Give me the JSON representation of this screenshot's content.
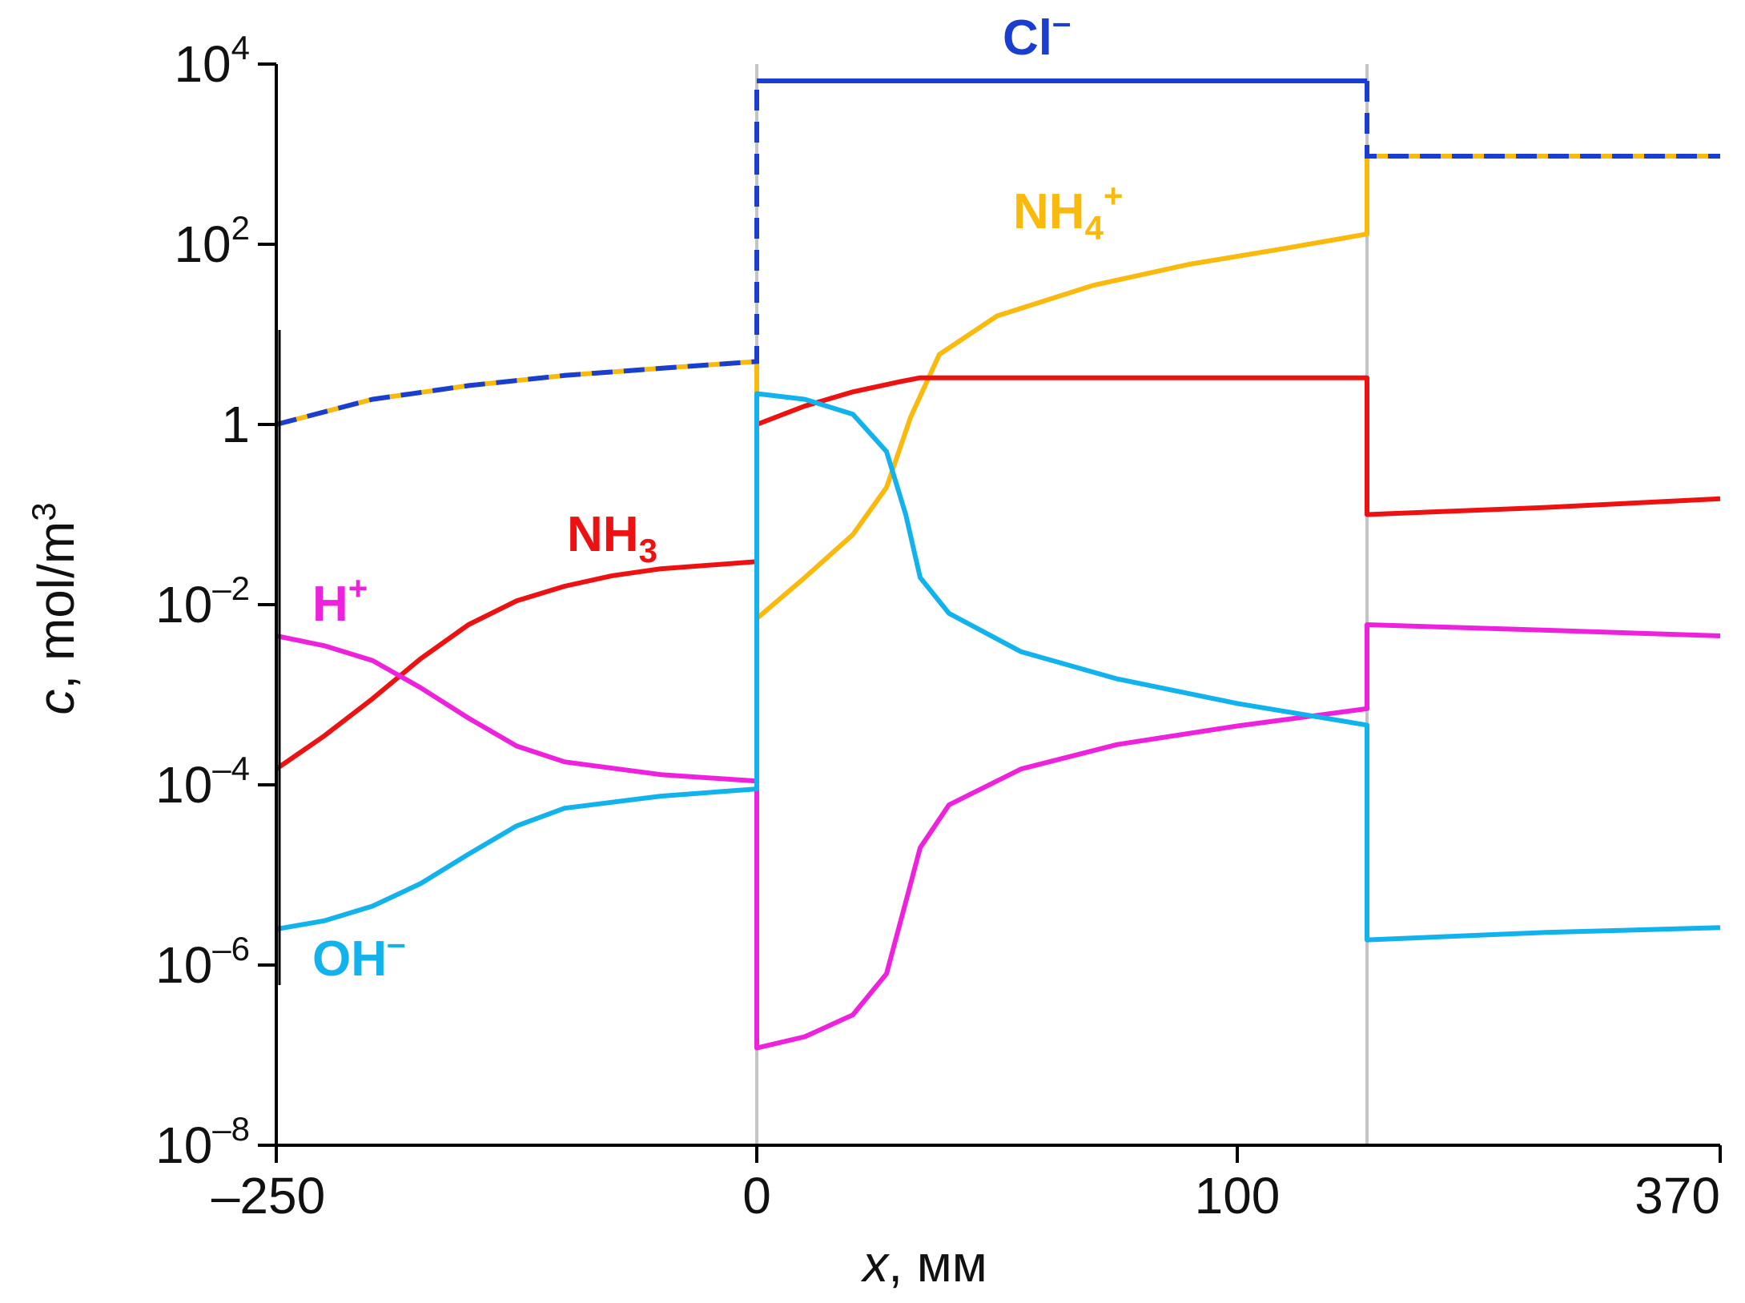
{
  "chart_data": {
    "type": "line",
    "title": "",
    "xlabel": {
      "symbol": "x",
      "unit": ", мм"
    },
    "ylabel": {
      "symbol": "c",
      "unit": ", mol/m",
      "unit_sup": "3"
    },
    "yscale": "log10",
    "ylim": [
      1e-08,
      10000
    ],
    "x_ticks": [
      {
        "value": "-250",
        "label": "–250"
      },
      {
        "value": "0",
        "label": "0"
      },
      {
        "value": "100",
        "label": "100"
      },
      {
        "value": "370",
        "label": "370"
      }
    ],
    "y_ticks": [
      {
        "value": 10000,
        "base": "10",
        "exp": "4"
      },
      {
        "value": 100,
        "base": "10",
        "exp": "2"
      },
      {
        "value": 1,
        "base": "1",
        "exp": ""
      },
      {
        "value": 0.01,
        "base": "10",
        "exp": "–2"
      },
      {
        "value": 0.0001,
        "base": "10",
        "exp": "–4"
      },
      {
        "value": 1e-06,
        "base": "10",
        "exp": "–6"
      },
      {
        "value": 1e-08,
        "base": "10",
        "exp": "–8"
      }
    ],
    "x_axis_note": "Piecewise x axis: segment [-250, 0], segment [0, 127] (membrane region, linear with 100 at tick), segment [127, 370].",
    "boundaries_x": [
      0,
      127
    ],
    "series": [
      {
        "name": "Cl–",
        "label_main": "Cl",
        "label_sup": "–",
        "label_sub": "",
        "color": "#1a3fd0",
        "style": "dashed-outside-solid-inside",
        "points": [
          [
            -250,
            1.0
          ],
          [
            -200,
            1.9
          ],
          [
            -150,
            2.7
          ],
          [
            -100,
            3.5
          ],
          [
            -50,
            4.2
          ],
          [
            0,
            5.0
          ],
          [
            0,
            6500
          ],
          [
            50,
            6500
          ],
          [
            100,
            6500
          ],
          [
            127,
            6500
          ],
          [
            127,
            950
          ],
          [
            250,
            950
          ],
          [
            370,
            950
          ]
        ]
      },
      {
        "name": "NH4+",
        "label_main": "NH",
        "label_sub": "4",
        "label_sup": "+",
        "color": "#f9b90d",
        "style": "solid",
        "points": [
          [
            -250,
            1.0
          ],
          [
            -200,
            1.9
          ],
          [
            -150,
            2.7
          ],
          [
            -100,
            3.5
          ],
          [
            -50,
            4.2
          ],
          [
            0,
            5.0
          ],
          [
            0,
            0.007
          ],
          [
            10,
            0.02
          ],
          [
            20,
            0.06
          ],
          [
            27,
            0.2
          ],
          [
            32,
            1.2
          ],
          [
            38,
            6.0
          ],
          [
            50,
            16
          ],
          [
            70,
            35
          ],
          [
            90,
            60
          ],
          [
            110,
            90
          ],
          [
            127,
            130
          ],
          [
            127,
            950
          ],
          [
            250,
            950
          ],
          [
            370,
            950
          ]
        ]
      },
      {
        "name": "NH3",
        "label_main": "NH",
        "label_sub": "3",
        "label_sup": "",
        "color": "#ee1111",
        "style": "solid",
        "points": [
          [
            -250,
            0.00015
          ],
          [
            -225,
            0.00035
          ],
          [
            -200,
            0.0009
          ],
          [
            -175,
            0.0025
          ],
          [
            -150,
            0.006
          ],
          [
            -125,
            0.011
          ],
          [
            -100,
            0.016
          ],
          [
            -75,
            0.021
          ],
          [
            -50,
            0.025
          ],
          [
            0,
            0.03
          ],
          [
            0,
            1.0
          ],
          [
            10,
            1.6
          ],
          [
            20,
            2.3
          ],
          [
            30,
            3.0
          ],
          [
            34,
            3.3
          ],
          [
            60,
            3.3
          ],
          [
            100,
            3.3
          ],
          [
            127,
            3.3
          ],
          [
            127,
            0.1
          ],
          [
            250,
            0.12
          ],
          [
            370,
            0.15
          ]
        ]
      },
      {
        "name": "H+",
        "label_main": "H",
        "label_sub": "",
        "label_sup": "+",
        "color": "#ee22dd",
        "style": "solid",
        "points": [
          [
            -250,
            0.0045
          ],
          [
            -225,
            0.0035
          ],
          [
            -200,
            0.0024
          ],
          [
            -175,
            0.0012
          ],
          [
            -150,
            0.00055
          ],
          [
            -125,
            0.00027
          ],
          [
            -100,
            0.00018
          ],
          [
            -50,
            0.00013
          ],
          [
            0,
            0.00011
          ],
          [
            0,
            1.2e-07
          ],
          [
            10,
            1.6e-07
          ],
          [
            20,
            2.8e-07
          ],
          [
            27,
            8e-07
          ],
          [
            31,
            5e-06
          ],
          [
            34,
            2e-05
          ],
          [
            40,
            6e-05
          ],
          [
            55,
            0.00015
          ],
          [
            75,
            0.00028
          ],
          [
            100,
            0.00045
          ],
          [
            127,
            0.0007
          ],
          [
            127,
            0.006
          ],
          [
            250,
            0.0052
          ],
          [
            370,
            0.0045
          ]
        ]
      },
      {
        "name": "OH–",
        "label_main": "OH",
        "label_sub": "",
        "label_sup": "–",
        "color": "#12b2ec",
        "style": "solid",
        "points": [
          [
            -250,
            2.5e-06
          ],
          [
            -225,
            3.1e-06
          ],
          [
            -200,
            4.5e-06
          ],
          [
            -175,
            8e-06
          ],
          [
            -150,
            1.7e-05
          ],
          [
            -125,
            3.5e-05
          ],
          [
            -100,
            5.5e-05
          ],
          [
            -50,
            7.5e-05
          ],
          [
            0,
            9e-05
          ],
          [
            0,
            2.2
          ],
          [
            10,
            1.9
          ],
          [
            20,
            1.3
          ],
          [
            27,
            0.5
          ],
          [
            31,
            0.1
          ],
          [
            34,
            0.02
          ],
          [
            40,
            0.008
          ],
          [
            55,
            0.003
          ],
          [
            75,
            0.0015
          ],
          [
            100,
            0.0008
          ],
          [
            127,
            0.00046
          ],
          [
            127,
            1.9e-06
          ],
          [
            250,
            2.3e-06
          ],
          [
            370,
            2.6e-06
          ]
        ]
      }
    ]
  }
}
